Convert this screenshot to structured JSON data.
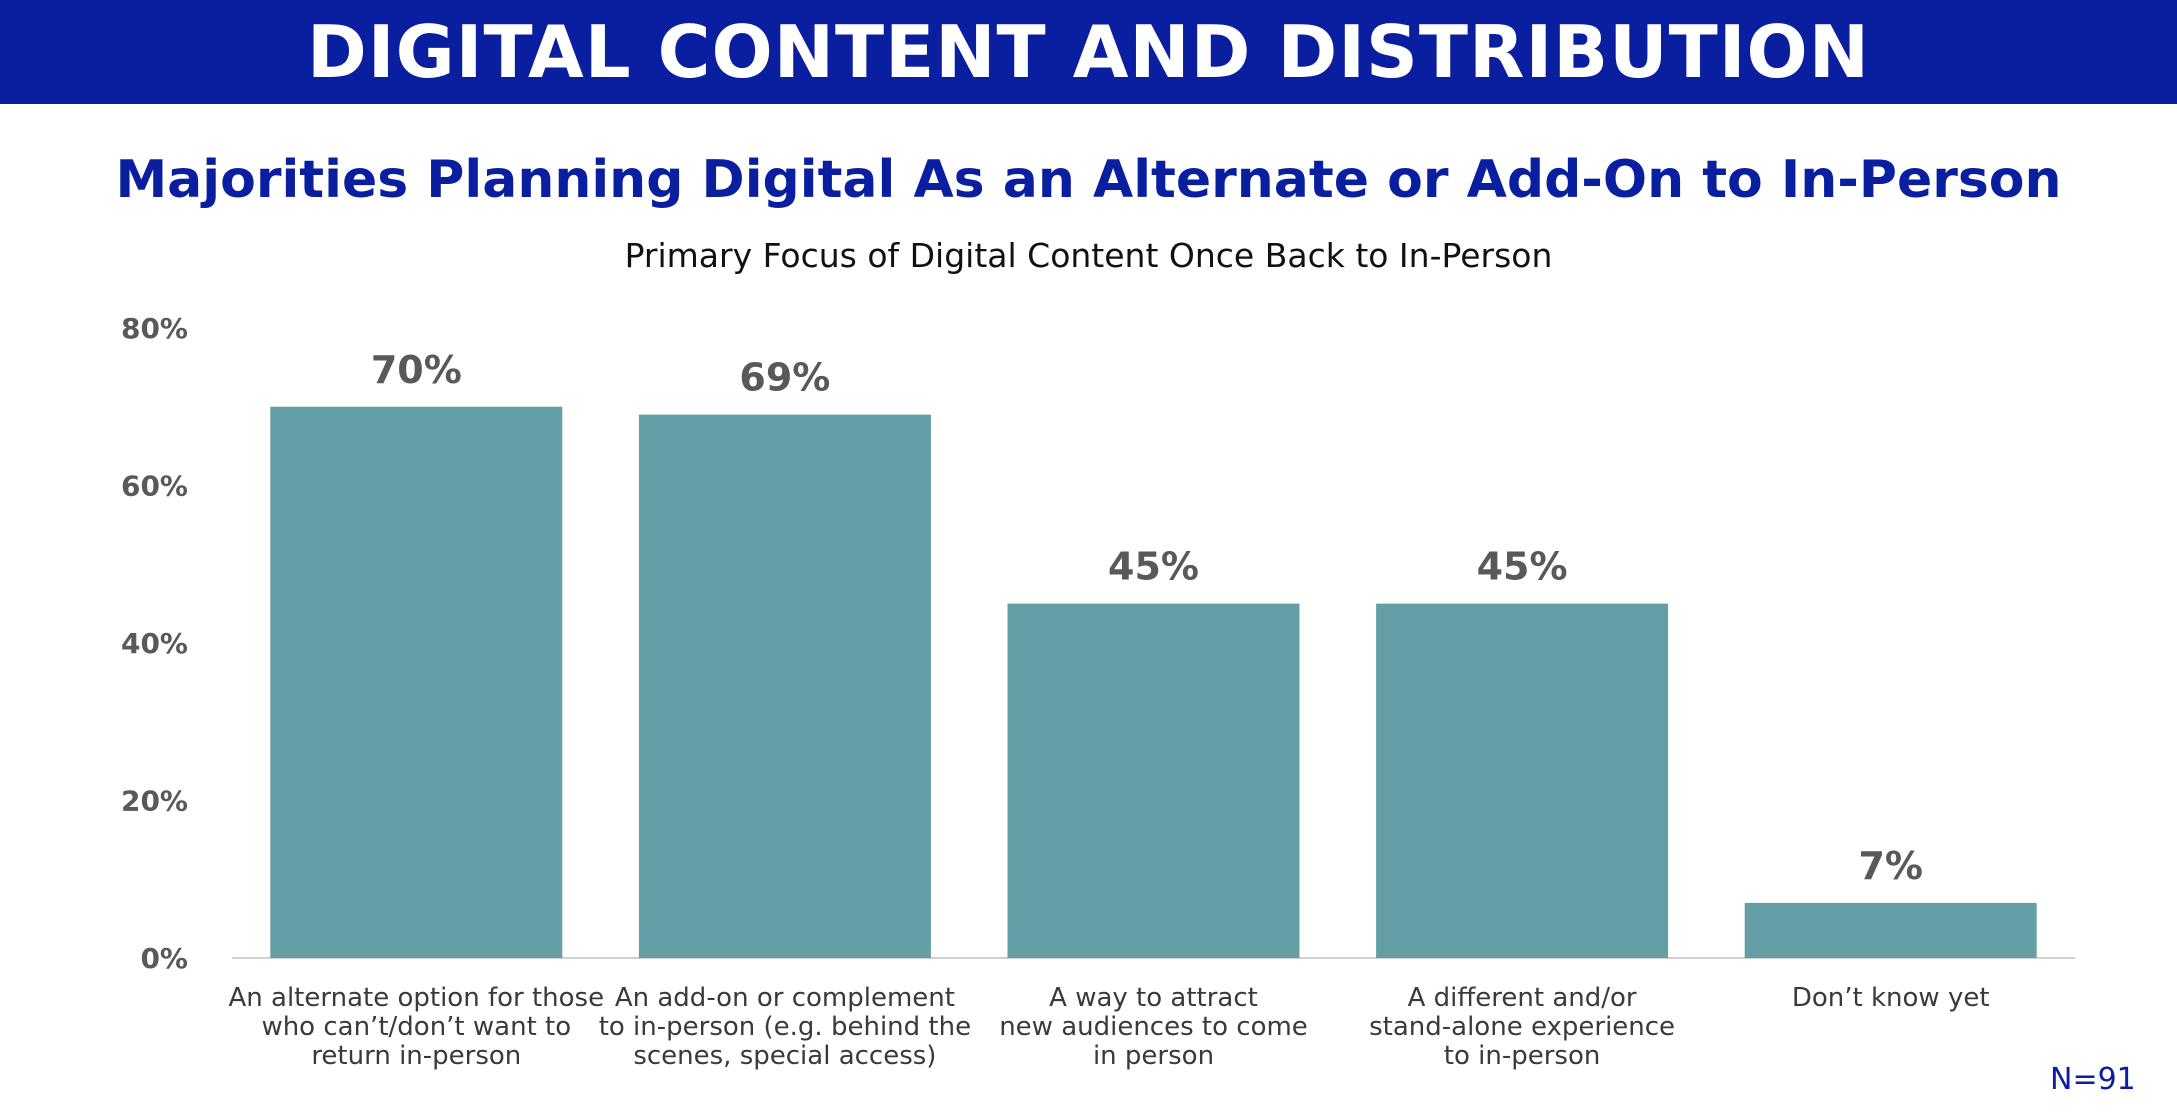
{
  "banner": {
    "title": "DIGITAL CONTENT AND DISTRIBUTION",
    "background": "#0a1fa0"
  },
  "headline": "Majorities Planning Digital As an Alternate or Add-On to In-Person",
  "footnote": "N=91",
  "chart_data": {
    "type": "bar",
    "title": "Primary Focus of Digital Content Once Back to In-Person",
    "xlabel": "",
    "ylabel": "",
    "categories": [
      "An alternate option for those who can’t/don’t want to return in-person",
      "An add-on or complement to in-person (e.g. behind the scenes, special access)",
      "A way to attract new audiences to come in person",
      "A different and/or stand-alone experience to in-person",
      "Don’t know yet"
    ],
    "category_lines": [
      [
        "An alternate option for those",
        "who can’t/don’t want to",
        "return in-person"
      ],
      [
        "An add-on or complement",
        "to in-person (e.g. behind the",
        "scenes, special access)"
      ],
      [
        "A way to attract",
        "new audiences to come",
        "in person"
      ],
      [
        "A different and/or",
        "stand-alone experience",
        "to in-person"
      ],
      [
        "Don’t know yet"
      ]
    ],
    "values": [
      70,
      69,
      45,
      45,
      7
    ],
    "value_labels": [
      "70%",
      "69%",
      "45%",
      "45%",
      "7%"
    ],
    "ylim": [
      0,
      80
    ],
    "yticks": [
      0,
      20,
      40,
      60,
      80
    ],
    "ytick_labels": [
      "0%",
      "20%",
      "40%",
      "60%",
      "80%"
    ],
    "grid": false,
    "legend": "none",
    "bar_color": "#649fa6"
  }
}
